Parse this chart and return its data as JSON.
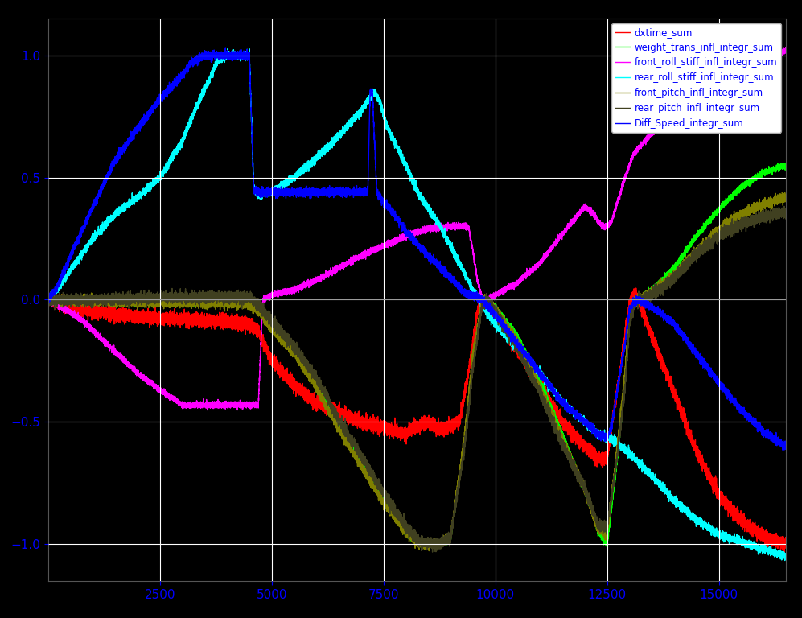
{
  "background_color": "#000000",
  "ax_facecolor": "#000000",
  "grid_color": "#ffffff",
  "tick_color": "#0000ff",
  "legend_labels": [
    "dxtime_sum",
    "weight_trans_infl_integr_sum",
    "front_roll_stiff_infl_integr_sum",
    "rear_roll_stiff_infl_integr_sum",
    "front_pitch_infl_integr_sum",
    "rear_pitch_infl_integr_sum",
    "Diff_Speed_integr_sum"
  ],
  "line_colors": [
    "#ff0000",
    "#00ff00",
    "#ff00ff",
    "#00ffff",
    "#808000",
    "#404020",
    "#0000ff"
  ],
  "xlim": [
    0,
    16500
  ],
  "ylim": [
    -1.15,
    1.15
  ],
  "xticks": [
    2500,
    5000,
    7500,
    10000,
    12500,
    15000
  ],
  "yticks": [
    -1,
    -0.5,
    0,
    0.5,
    1
  ],
  "n_points": 16500
}
